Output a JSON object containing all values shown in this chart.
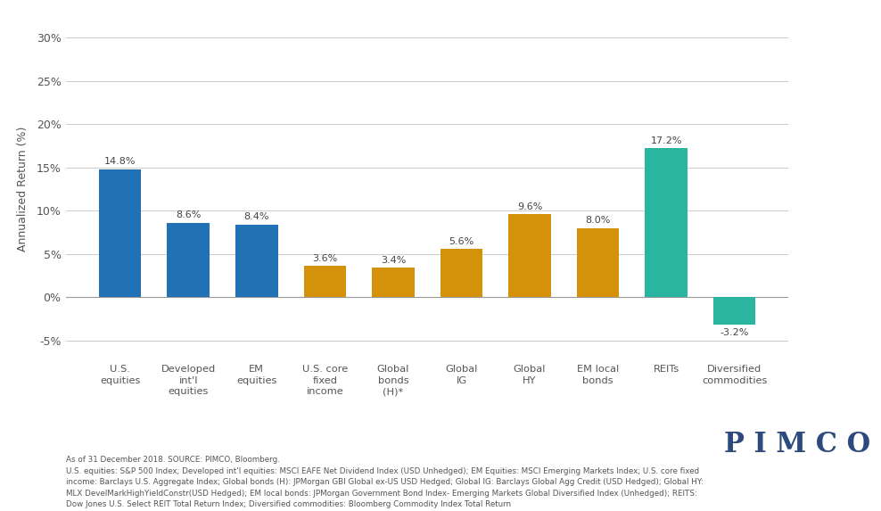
{
  "categories": [
    "U.S.\nequities",
    "Developed\nint'l\nequities",
    "EM\nequities",
    "U.S. core\nfixed\nincome",
    "Global\nbonds\n(H)*",
    "Global\nIG",
    "Global\nHY",
    "EM local\nbonds",
    "REITs",
    "Diversified\ncommodities"
  ],
  "values": [
    14.8,
    8.6,
    8.4,
    3.6,
    3.4,
    5.6,
    9.6,
    8.0,
    17.2,
    -3.2
  ],
  "bar_colors": [
    "#2171b5",
    "#2171b5",
    "#2171b5",
    "#d4920a",
    "#d4920a",
    "#d4920a",
    "#d4920a",
    "#d4920a",
    "#2ab5a0",
    "#2ab5a0"
  ],
  "ylabel": "Annualized Return (%)",
  "ylim": [
    -7,
    32
  ],
  "yticks": [
    -5,
    0,
    5,
    10,
    15,
    20,
    25,
    30
  ],
  "ytick_labels": [
    "-5%",
    "0%",
    "5%",
    "10%",
    "15%",
    "20%",
    "25%",
    "30%"
  ],
  "value_labels": [
    "14.8%",
    "8.6%",
    "8.4%",
    "3.6%",
    "3.4%",
    "5.6%",
    "9.6%",
    "8.0%",
    "17.2%",
    "-3.2%"
  ],
  "footnote_line1": "As of 31 December 2018. SOURCE: PIMCO, Bloomberg.",
  "footnote_line2": "U.S. equities: S&P 500 Index; Developed int'l equities: MSCI EAFE Net Dividend Index (USD Unhedged); EM Equities: MSCI Emerging Markets Index; U.S. core fixed",
  "footnote_line3": "income: Barclays U.S. Aggregate Index; Global bonds (H): JPMorgan GBI Global ex-US USD Hedged; Global IG: Barclays Global Agg Credit (USD Hedged); Global HY:",
  "footnote_line4": "MLX DevelMarkHighYieldConstr(USD Hedged); EM local bonds: JPMorgan Government Bond Index- Emerging Markets Global Diversified Index (Unhedged); REITS:",
  "footnote_line5": "Dow Jones U.S. Select REIT Total Return Index; Diversified commodities: Bloomberg Commodity Index Total Return",
  "pimco_text": "P I M C O",
  "pimco_color": "#2c4a7c",
  "background_color": "#ffffff",
  "grid_color": "#cccccc",
  "text_color": "#555555",
  "label_color": "#444444"
}
